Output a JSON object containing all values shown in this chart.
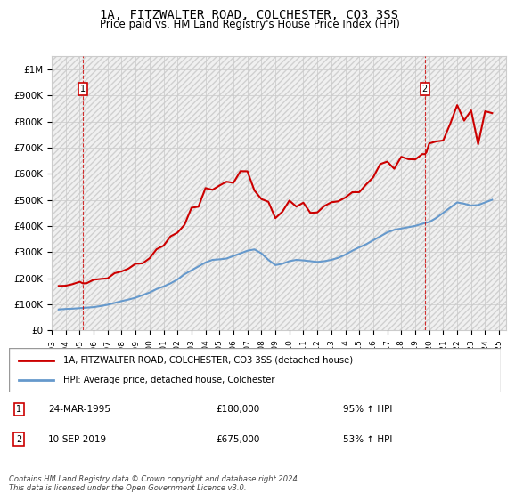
{
  "title": "1A, FITZWALTER ROAD, COLCHESTER, CO3 3SS",
  "subtitle": "Price paid vs. HM Land Registry's House Price Index (HPI)",
  "ylabel_ticks": [
    "£0",
    "£100K",
    "£200K",
    "£300K",
    "£400K",
    "£500K",
    "£600K",
    "£700K",
    "£800K",
    "£900K",
    "£1M"
  ],
  "ylim": [
    0,
    1050000
  ],
  "xlim_start": 1993.0,
  "xlim_end": 2025.5,
  "sale_dates": [
    1995.23,
    2019.69
  ],
  "sale_prices": [
    180000,
    675000
  ],
  "sale_labels": [
    "1",
    "2"
  ],
  "annotation1": {
    "label": "1",
    "date": "24-MAR-1995",
    "price": "£180,000",
    "hpi": "95% ↑ HPI"
  },
  "annotation2": {
    "label": "2",
    "date": "10-SEP-2019",
    "price": "£675,000",
    "hpi": "53% ↑ HPI"
  },
  "legend_line1": "1A, FITZWALTER ROAD, COLCHESTER, CO3 3SS (detached house)",
  "legend_line2": "HPI: Average price, detached house, Colchester",
  "footer": "Contains HM Land Registry data © Crown copyright and database right 2024.\nThis data is licensed under the Open Government Licence v3.0.",
  "grid_color": "#cccccc",
  "hatch_color": "#e8e8e8",
  "red_color": "#cc0000",
  "blue_color": "#6699cc",
  "background_color": "#ffffff"
}
